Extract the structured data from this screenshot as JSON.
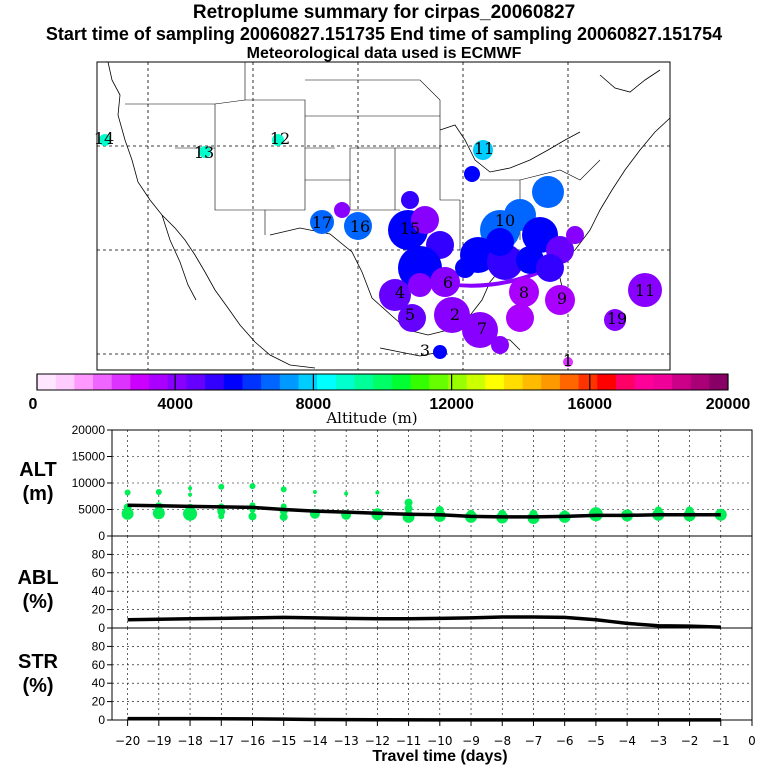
{
  "header": {
    "title": "Retroplume summary for cirpas_20060827",
    "sampling_line": "Start time of sampling 20060827.151735     End time of sampling 20060827.151754",
    "met_line": "Meteorological data used is ECMWF"
  },
  "colorbar": {
    "label": "Altitude (m)",
    "ticks": [
      "0",
      "4000",
      "8000",
      "12000",
      "16000",
      "20000"
    ],
    "range": [
      0,
      20000
    ],
    "colors": [
      "#ffe6ff",
      "#ffccff",
      "#ff99ff",
      "#ee66ff",
      "#dd33ff",
      "#cc00ff",
      "#aa00ff",
      "#8800ff",
      "#6600ff",
      "#3300ff",
      "#0000ff",
      "#0033ff",
      "#0066ff",
      "#0099ff",
      "#00ccff",
      "#00ffff",
      "#00ffcc",
      "#00ff99",
      "#00ff66",
      "#00ff33",
      "#33ff00",
      "#66ff00",
      "#99ff00",
      "#ccff00",
      "#ffff00",
      "#ffdd00",
      "#ffbb00",
      "#ff9900",
      "#ff6600",
      "#ff3300",
      "#ff0000",
      "#ff0066",
      "#ff0099",
      "#ee0099",
      "#cc0088",
      "#aa0077",
      "#880066"
    ]
  },
  "map": {
    "labels": [
      {
        "text": "14",
        "color": "#00ffcc"
      },
      {
        "text": "13",
        "color": "#00ffcc"
      },
      {
        "text": "12",
        "color": "#00ffcc"
      },
      {
        "text": "11",
        "color": "#00ccff"
      },
      {
        "text": "17",
        "color": "#0066ff"
      },
      {
        "text": "16",
        "color": "#0066ff"
      },
      {
        "text": "15",
        "color": "#0000ff"
      },
      {
        "text": "10",
        "color": "#0066ff"
      },
      {
        "text": "6",
        "color": "#8800ff"
      },
      {
        "text": "5",
        "color": "#0000ff"
      },
      {
        "text": "4",
        "color": "#6600ff"
      },
      {
        "text": "7",
        "color": "#8800ff"
      },
      {
        "text": "8",
        "color": "#aa00ff"
      },
      {
        "text": "9",
        "color": "#aa00ff"
      },
      {
        "text": "3",
        "color": "#0000ff"
      },
      {
        "text": "2",
        "color": "#8800ff"
      },
      {
        "text": "1",
        "color": "#dd33ff"
      },
      {
        "text": "11",
        "color": "#8800ff"
      },
      {
        "text": "19",
        "color": "#cc00ff"
      }
    ]
  },
  "chart_data": [
    {
      "type": "scatter",
      "panel": "ALT",
      "ylabel": "ALT\n(m)",
      "ylim": [
        0,
        20000
      ],
      "yticks": [
        0,
        5000,
        10000,
        15000,
        20000
      ],
      "xlim": [
        -20.5,
        0
      ],
      "line_x": [
        -20,
        -19,
        -18,
        -17,
        -16,
        -15,
        -14,
        -13,
        -12,
        -11,
        -10,
        -9,
        -8,
        -7,
        -6,
        -5,
        -4,
        -3,
        -2,
        -1
      ],
      "line_y": [
        5800,
        5700,
        5600,
        5500,
        5400,
        5000,
        4700,
        4500,
        4300,
        4100,
        4000,
        3700,
        3600,
        3600,
        3700,
        3900,
        3900,
        4000,
        4000,
        4000
      ],
      "points": [
        {
          "x": -20,
          "y": 4200,
          "r": 6
        },
        {
          "x": -20,
          "y": 5400,
          "r": 4
        },
        {
          "x": -20,
          "y": 8200,
          "r": 3
        },
        {
          "x": -19,
          "y": 4300,
          "r": 6
        },
        {
          "x": -19,
          "y": 5600,
          "r": 4
        },
        {
          "x": -19,
          "y": 8300,
          "r": 3
        },
        {
          "x": -18,
          "y": 4200,
          "r": 7
        },
        {
          "x": -18,
          "y": 5300,
          "r": 4
        },
        {
          "x": -18,
          "y": 7800,
          "r": 2
        },
        {
          "x": -18,
          "y": 9000,
          "r": 2
        },
        {
          "x": -17,
          "y": 3700,
          "r": 3
        },
        {
          "x": -17,
          "y": 4600,
          "r": 4
        },
        {
          "x": -17,
          "y": 5600,
          "r": 3
        },
        {
          "x": -17,
          "y": 9300,
          "r": 3
        },
        {
          "x": -16,
          "y": 3700,
          "r": 4
        },
        {
          "x": -16,
          "y": 4900,
          "r": 3
        },
        {
          "x": -16,
          "y": 5800,
          "r": 3
        },
        {
          "x": -16,
          "y": 9400,
          "r": 3
        },
        {
          "x": -15,
          "y": 3600,
          "r": 4
        },
        {
          "x": -15,
          "y": 4700,
          "r": 4
        },
        {
          "x": -15,
          "y": 5600,
          "r": 3
        },
        {
          "x": -15,
          "y": 8800,
          "r": 3
        },
        {
          "x": -14,
          "y": 4200,
          "r": 5
        },
        {
          "x": -14,
          "y": 8300,
          "r": 2
        },
        {
          "x": -13,
          "y": 4000,
          "r": 5
        },
        {
          "x": -13,
          "y": 8000,
          "r": 2
        },
        {
          "x": -12,
          "y": 4100,
          "r": 6
        },
        {
          "x": -12,
          "y": 8200,
          "r": 2
        },
        {
          "x": -11,
          "y": 3600,
          "r": 6
        },
        {
          "x": -11,
          "y": 5200,
          "r": 4
        },
        {
          "x": -11,
          "y": 6300,
          "r": 4
        },
        {
          "x": -10,
          "y": 3800,
          "r": 6
        },
        {
          "x": -10,
          "y": 4900,
          "r": 4
        },
        {
          "x": -9,
          "y": 3600,
          "r": 6
        },
        {
          "x": -9,
          "y": 4200,
          "r": 4
        },
        {
          "x": -8,
          "y": 3500,
          "r": 6
        },
        {
          "x": -8,
          "y": 4200,
          "r": 4
        },
        {
          "x": -7,
          "y": 3400,
          "r": 6
        },
        {
          "x": -7,
          "y": 4200,
          "r": 4
        },
        {
          "x": -6,
          "y": 3600,
          "r": 6
        },
        {
          "x": -6,
          "y": 4300,
          "r": 3
        },
        {
          "x": -5,
          "y": 4100,
          "r": 7
        },
        {
          "x": -5,
          "y": 4700,
          "r": 4
        },
        {
          "x": -4,
          "y": 3900,
          "r": 6
        },
        {
          "x": -3,
          "y": 4000,
          "r": 6
        },
        {
          "x": -3,
          "y": 4800,
          "r": 4
        },
        {
          "x": -2,
          "y": 3900,
          "r": 6
        },
        {
          "x": -2,
          "y": 4800,
          "r": 4
        },
        {
          "x": -1,
          "y": 4000,
          "r": 6
        }
      ],
      "point_color": "#00ee55"
    },
    {
      "type": "line",
      "panel": "ABL",
      "ylabel": "ABL\n(%)",
      "ylim": [
        0,
        100
      ],
      "yticks": [
        0,
        20,
        40,
        60,
        80
      ],
      "xlim": [
        -20.5,
        0
      ],
      "x": [
        -20,
        -19,
        -18,
        -17,
        -16,
        -15,
        -14,
        -13,
        -12,
        -11,
        -10,
        -9,
        -8,
        -7,
        -6,
        -5,
        -4.5,
        -4,
        -3,
        -2,
        -1
      ],
      "y": [
        9,
        9.5,
        10,
        10.5,
        11,
        11.5,
        11,
        10.5,
        10,
        10,
        10.5,
        11,
        12,
        12,
        11.5,
        9,
        7,
        5,
        2.5,
        2,
        1
      ]
    },
    {
      "type": "line",
      "panel": "STR",
      "ylabel": "STR\n(%)",
      "ylim": [
        0,
        100
      ],
      "yticks": [
        0,
        20,
        40,
        60,
        80
      ],
      "xlim": [
        -20.5,
        0
      ],
      "xlabel": "Travel time (days)",
      "xticks": [
        -20,
        -19,
        -18,
        -17,
        -16,
        -15,
        -14,
        -13,
        -12,
        -11,
        -10,
        -9,
        -8,
        -7,
        -6,
        -5,
        -4,
        -3,
        -2,
        -1,
        0
      ],
      "xtick_labels": [
        "−20",
        "−19",
        "−18",
        "−17",
        "−16",
        "−15",
        "−14",
        "−13",
        "−12",
        "−11",
        "−10",
        "−9",
        "−8",
        "−7",
        "−6",
        "−5",
        "−4",
        "−3",
        "−2",
        "−1",
        "0"
      ],
      "x": [
        -20,
        -18,
        -16,
        -15,
        -14,
        -12,
        -10,
        -8,
        -6,
        -4,
        -2,
        -1
      ],
      "y": [
        1.5,
        1.5,
        1.2,
        1,
        0.5,
        0.3,
        0.2,
        0.1,
        0.1,
        0.1,
        0.1,
        0.1
      ]
    }
  ]
}
